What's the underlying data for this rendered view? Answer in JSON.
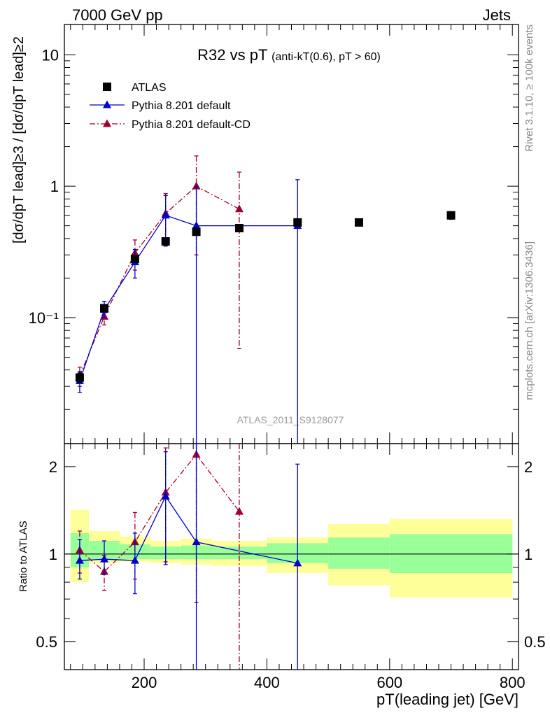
{
  "header": {
    "left": "7000 GeV pp",
    "right": "Jets"
  },
  "side_labels": {
    "rivet": "Rivet 3.1.10, ≥ 100k events",
    "mcplots": "mcplots.cern.ch [arXiv:1306.3436]"
  },
  "chart_data": [
    {
      "type": "scatter",
      "panel": "main",
      "title_main": "R32 vs pT",
      "title_sub": "(anti-k_T(0.6), pT > 60)",
      "ylabel": "[dσ/dp_T^lead]^{≥3} / [dσ/dp_T^lead]^{≥2}",
      "watermark": "ATLAS_2011_S9128077",
      "yscale": "log",
      "xlim": [
        70,
        810
      ],
      "ylim": [
        0.011,
        17
      ],
      "grid": false,
      "legend_position": "top-left",
      "y_ticks": [
        {
          "value": 0.1,
          "label": "10⁻¹"
        },
        {
          "value": 1,
          "label": "1"
        },
        {
          "value": 10,
          "label": "10"
        }
      ],
      "series": [
        {
          "name": "ATLAS",
          "style": "data",
          "color": "#000000",
          "marker": "square",
          "points": [
            {
              "x": 95,
              "y": 0.035,
              "ylo": 0.032,
              "yhi": 0.038
            },
            {
              "x": 135,
              "y": 0.118,
              "ylo": 0.112,
              "yhi": 0.124
            },
            {
              "x": 185,
              "y": 0.28,
              "ylo": 0.265,
              "yhi": 0.295
            },
            {
              "x": 235,
              "y": 0.38,
              "ylo": 0.36,
              "yhi": 0.4
            },
            {
              "x": 285,
              "y": 0.45,
              "ylo": 0.43,
              "yhi": 0.47
            },
            {
              "x": 355,
              "y": 0.48,
              "ylo": 0.46,
              "yhi": 0.5
            },
            {
              "x": 450,
              "y": 0.53,
              "ylo": 0.5,
              "yhi": 0.56
            },
            {
              "x": 550,
              "y": 0.53,
              "ylo": 0.5,
              "yhi": 0.56
            },
            {
              "x": 700,
              "y": 0.6,
              "ylo": 0.56,
              "yhi": 0.64
            }
          ]
        },
        {
          "name": "Pythia 8.201 default",
          "style": "solid",
          "color": "#0000cc",
          "marker": "triangle",
          "points": [
            {
              "x": 95,
              "y": 0.033,
              "ylo": 0.027,
              "yhi": 0.039
            },
            {
              "x": 135,
              "y": 0.115,
              "ylo": 0.1,
              "yhi": 0.133
            },
            {
              "x": 185,
              "y": 0.265,
              "ylo": 0.2,
              "yhi": 0.33
            },
            {
              "x": 235,
              "y": 0.6,
              "ylo": 0.35,
              "yhi": 0.85
            },
            {
              "x": 285,
              "y": 0.5,
              "ylo": 0.0001,
              "yhi": 1.0
            },
            {
              "x": 450,
              "y": 0.5,
              "ylo": 0.0001,
              "yhi": 1.12
            }
          ]
        },
        {
          "name": "Pythia 8.201 default-CD",
          "style": "dashdot",
          "color": "#a0002a",
          "marker": "triangle",
          "points": [
            {
              "x": 95,
              "y": 0.036,
              "ylo": 0.03,
              "yhi": 0.042
            },
            {
              "x": 135,
              "y": 0.102,
              "ylo": 0.088,
              "yhi": 0.116
            },
            {
              "x": 185,
              "y": 0.31,
              "ylo": 0.23,
              "yhi": 0.39
            },
            {
              "x": 235,
              "y": 0.62,
              "ylo": 0.36,
              "yhi": 0.88
            },
            {
              "x": 285,
              "y": 1.0,
              "ylo": 0.3,
              "yhi": 1.7
            },
            {
              "x": 355,
              "y": 0.67,
              "ylo": 0.058,
              "yhi": 1.28
            }
          ]
        }
      ]
    },
    {
      "type": "scatter",
      "panel": "ratio",
      "ylabel": "Ratio to ATLAS",
      "xlabel": "p_T(leading jet) [GeV]",
      "yscale": "log",
      "xlim": [
        70,
        810
      ],
      "ylim": [
        0.4,
        2.4
      ],
      "reference_line": 1,
      "x_ticks": [
        200,
        400,
        600,
        800
      ],
      "y_ticks": [
        {
          "value": 0.5,
          "label": "0.5"
        },
        {
          "value": 1,
          "label": "1"
        },
        {
          "value": 2,
          "label": "2"
        }
      ],
      "bands": [
        {
          "xlo": 80,
          "xhi": 110,
          "stat_lo": 0.9,
          "stat_hi": 1.18,
          "tot_lo": 0.8,
          "tot_hi": 1.42
        },
        {
          "xlo": 110,
          "xhi": 160,
          "stat_lo": 0.96,
          "stat_hi": 1.11,
          "tot_lo": 0.93,
          "tot_hi": 1.2
        },
        {
          "xlo": 160,
          "xhi": 210,
          "stat_lo": 0.96,
          "stat_hi": 1.08,
          "tot_lo": 0.94,
          "tot_hi": 1.15
        },
        {
          "xlo": 210,
          "xhi": 260,
          "stat_lo": 0.96,
          "stat_hi": 1.06,
          "tot_lo": 0.93,
          "tot_hi": 1.11
        },
        {
          "xlo": 260,
          "xhi": 310,
          "stat_lo": 0.96,
          "stat_hi": 1.07,
          "tot_lo": 0.92,
          "tot_hi": 1.13
        },
        {
          "xlo": 310,
          "xhi": 400,
          "stat_lo": 0.96,
          "stat_hi": 1.06,
          "tot_lo": 0.91,
          "tot_hi": 1.11
        },
        {
          "xlo": 400,
          "xhi": 500,
          "stat_lo": 0.93,
          "stat_hi": 1.09,
          "tot_lo": 0.86,
          "tot_hi": 1.14
        },
        {
          "xlo": 500,
          "xhi": 600,
          "stat_lo": 0.89,
          "stat_hi": 1.14,
          "tot_lo": 0.78,
          "tot_hi": 1.27
        },
        {
          "xlo": 600,
          "xhi": 800,
          "stat_lo": 0.86,
          "stat_hi": 1.17,
          "tot_lo": 0.71,
          "tot_hi": 1.32
        }
      ],
      "series": [
        {
          "name": "Pythia 8.201 default",
          "style": "solid",
          "color": "#0000cc",
          "points": [
            {
              "x": 95,
              "y": 0.95,
              "ylo": 0.82,
              "yhi": 1.12
            },
            {
              "x": 135,
              "y": 0.96,
              "ylo": 0.85,
              "yhi": 1.11
            },
            {
              "x": 185,
              "y": 0.95,
              "ylo": 0.73,
              "yhi": 1.18
            },
            {
              "x": 235,
              "y": 1.58,
              "ylo": 0.92,
              "yhi": 2.25
            },
            {
              "x": 285,
              "y": 1.1,
              "ylo": 0.001,
              "yhi": 2.4
            },
            {
              "x": 450,
              "y": 0.93,
              "ylo": 0.001,
              "yhi": 2.04
            }
          ]
        },
        {
          "name": "Pythia 8.201 default-CD",
          "style": "dashdot",
          "color": "#a0002a",
          "points": [
            {
              "x": 95,
              "y": 1.03,
              "ylo": 0.86,
              "yhi": 1.2
            },
            {
              "x": 135,
              "y": 0.87,
              "ylo": 0.75,
              "yhi": 0.99
            },
            {
              "x": 185,
              "y": 1.1,
              "ylo": 0.82,
              "yhi": 1.39
            },
            {
              "x": 235,
              "y": 1.63,
              "ylo": 0.94,
              "yhi": 2.32
            },
            {
              "x": 285,
              "y": 2.2,
              "ylo": 0.68,
              "yhi": 3.0
            },
            {
              "x": 355,
              "y": 1.4,
              "ylo": 0.001,
              "yhi": 3.0
            }
          ]
        }
      ]
    }
  ]
}
